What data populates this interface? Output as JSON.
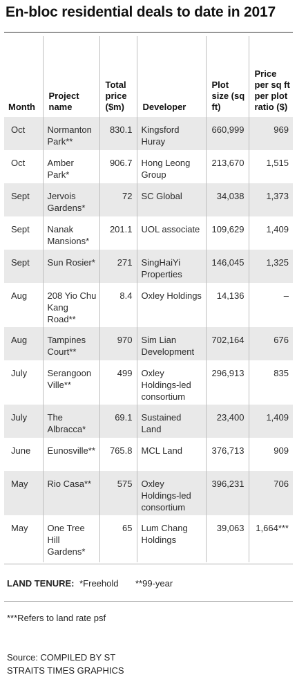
{
  "chart_data": {
    "type": "table",
    "title": "En-bloc residential deals to date in 2017",
    "columns": [
      "Month",
      "Project name",
      "Total price ($m)",
      "Developer",
      "Plot size (sq ft)",
      "Price per sq ft per plot ratio ($)"
    ],
    "rows": [
      {
        "month": "Oct",
        "project": "Normanton Park**",
        "price": "830.1",
        "developer": "Kingsford Huray",
        "plot": "660,999",
        "psf": "969"
      },
      {
        "month": "Oct",
        "project": "Amber Park*",
        "price": "906.7",
        "developer": "Hong Leong Group",
        "plot": "213,670",
        "psf": "1,515"
      },
      {
        "month": "Sept",
        "project": "Jervois Gardens*",
        "price": "72",
        "developer": "SC Global",
        "plot": "34,038",
        "psf": "1,373"
      },
      {
        "month": "Sept",
        "project": "Nanak Mansions*",
        "price": "201.1",
        "developer": "UOL associate",
        "plot": "109,629",
        "psf": "1,409"
      },
      {
        "month": "Sept",
        "project": "Sun Rosier*",
        "price": "271",
        "developer": "SingHaiYi Properties",
        "plot": "146,045",
        "psf": "1,325"
      },
      {
        "month": "Aug",
        "project": "208 Yio Chu Kang Road**",
        "price": "8.4",
        "developer": "Oxley Holdings",
        "plot": "14,136",
        "psf": "–"
      },
      {
        "month": "Aug",
        "project": "Tampines Court**",
        "price": "970",
        "developer": "Sim Lian Development",
        "plot": "702,164",
        "psf": "676"
      },
      {
        "month": "July",
        "project": "Serangoon Ville**",
        "price": "499",
        "developer": "Oxley Holdings-led consortium",
        "plot": "296,913",
        "psf": "835"
      },
      {
        "month": "July",
        "project": "The Albracca*",
        "price": "69.1",
        "developer": "Sustained Land",
        "plot": "23,400",
        "psf": "1,409"
      },
      {
        "month": "June",
        "project": "Eunosville**",
        "price": "765.8",
        "developer": "MCL Land",
        "plot": "376,713",
        "psf": "909"
      },
      {
        "month": "May",
        "project": "Rio Casa**",
        "price": "575",
        "developer": "Oxley Holdings-led consortium",
        "plot": "396,231",
        "psf": "706"
      },
      {
        "month": "May",
        "project": "One Tree Hill Gardens*",
        "price": "65",
        "developer": "Lum Chang Holdings",
        "plot": "39,063",
        "psf": "1,664***"
      }
    ]
  },
  "legend": {
    "label": "LAND TENURE:",
    "freehold": "*Freehold",
    "leasehold": "**99-year"
  },
  "footnote": "***Refers to land rate psf",
  "source": {
    "line1": "Source: COMPILED BY ST",
    "line2": "STRAITS TIMES GRAPHICS"
  }
}
